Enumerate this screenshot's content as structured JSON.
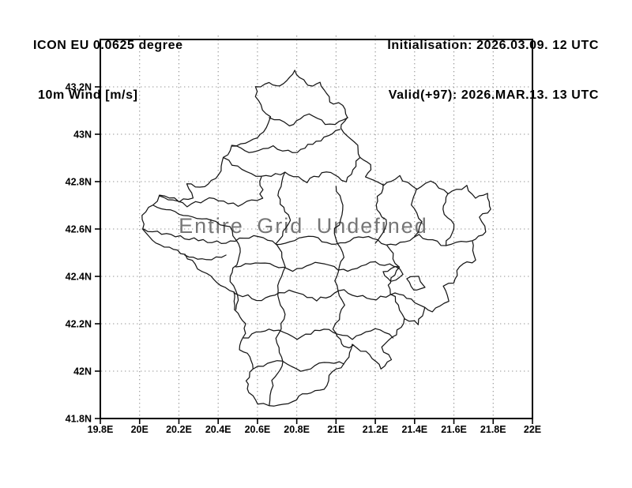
{
  "header": {
    "model": "ICON EU 0.0625 degree",
    "variable": "10m Wind [m/s]",
    "initialisation": "Initialisation: 2026.03.09. 12 UTC",
    "valid": "Valid(+97): 2026.MAR.13. 13 UTC"
  },
  "map": {
    "overlay_text": "Entire Grid Undefined",
    "x_range": [
      19.8,
      22.0
    ],
    "y_range": [
      41.8,
      43.4
    ],
    "x_tick_lons": [
      19.8,
      20.0,
      20.2,
      20.4,
      20.6,
      20.8,
      21.0,
      21.2,
      21.4,
      21.6,
      21.8,
      22.0
    ],
    "x_tick_labels": [
      "19.8E",
      "20E",
      "20.2E",
      "20.4E",
      "20.6E",
      "20.8E",
      "21E",
      "21.2E",
      "21.4E",
      "21.6E",
      "21.8E",
      "22E"
    ],
    "y_tick_lats": [
      43.2,
      43.0,
      42.8,
      42.6,
      42.4,
      42.2,
      42.0,
      41.8
    ],
    "y_tick_labels": [
      "43.2N",
      "43N",
      "42.8N",
      "42.6N",
      "42.4N",
      "42.2N",
      "42N",
      "41.8N"
    ],
    "colors": {
      "boundary": "#161616",
      "grid": "#949494",
      "frame": "#000000",
      "overlay_text": "#767676",
      "label": "#000000"
    },
    "boundaries": {
      "outer": [
        [
          20.79,
          43.27
        ],
        [
          20.86,
          43.2
        ],
        [
          20.92,
          43.22
        ],
        [
          20.97,
          43.14
        ],
        [
          21.03,
          43.12
        ],
        [
          21.06,
          43.07
        ],
        [
          21.02,
          43.02
        ],
        [
          21.1,
          42.97
        ],
        [
          21.12,
          42.9
        ],
        [
          21.18,
          42.87
        ],
        [
          21.15,
          42.82
        ],
        [
          21.24,
          42.79
        ],
        [
          21.32,
          42.82
        ],
        [
          21.41,
          42.77
        ],
        [
          21.48,
          42.8
        ],
        [
          21.57,
          42.75
        ],
        [
          21.66,
          42.78
        ],
        [
          21.71,
          42.73
        ],
        [
          21.77,
          42.75
        ],
        [
          21.79,
          42.68
        ],
        [
          21.73,
          42.65
        ],
        [
          21.76,
          42.59
        ],
        [
          21.69,
          42.55
        ],
        [
          21.71,
          42.47
        ],
        [
          21.63,
          42.44
        ],
        [
          21.6,
          42.37
        ],
        [
          21.55,
          42.36
        ],
        [
          21.57,
          42.3
        ],
        [
          21.49,
          42.25
        ],
        [
          21.45,
          42.27
        ],
        [
          21.42,
          42.2
        ],
        [
          21.35,
          42.22
        ],
        [
          21.29,
          42.14
        ],
        [
          21.23,
          42.1
        ],
        [
          21.28,
          42.05
        ],
        [
          21.23,
          42.01
        ],
        [
          21.15,
          42.08
        ],
        [
          21.09,
          42.11
        ],
        [
          21.04,
          42.03
        ],
        [
          20.97,
          41.98
        ],
        [
          20.94,
          41.92
        ],
        [
          20.85,
          41.91
        ],
        [
          20.78,
          41.87
        ],
        [
          20.66,
          41.855
        ],
        [
          20.6,
          41.86
        ],
        [
          20.56,
          41.91
        ],
        [
          20.54,
          41.96
        ],
        [
          20.58,
          42.01
        ],
        [
          20.56,
          42.06
        ],
        [
          20.51,
          42.09
        ],
        [
          20.53,
          42.14
        ],
        [
          20.54,
          42.2
        ],
        [
          20.49,
          42.26
        ],
        [
          20.48,
          42.33
        ],
        [
          20.41,
          42.36
        ],
        [
          20.34,
          42.41
        ],
        [
          20.28,
          42.45
        ],
        [
          20.23,
          42.49
        ],
        [
          20.15,
          42.52
        ],
        [
          20.06,
          42.55
        ],
        [
          20.02,
          42.6
        ],
        [
          20.01,
          42.66
        ],
        [
          20.07,
          42.7
        ],
        [
          20.1,
          42.74
        ],
        [
          20.2,
          42.72
        ],
        [
          20.27,
          42.73
        ],
        [
          20.24,
          42.79
        ],
        [
          20.33,
          42.78
        ],
        [
          20.4,
          42.83
        ],
        [
          20.43,
          42.9
        ],
        [
          20.47,
          42.95
        ],
        [
          20.56,
          42.97
        ],
        [
          20.63,
          43.01
        ],
        [
          20.66,
          43.07
        ],
        [
          20.6,
          43.14
        ],
        [
          20.59,
          43.2
        ],
        [
          20.66,
          43.22
        ],
        [
          20.72,
          43.2
        ],
        [
          20.79,
          43.27
        ]
      ],
      "internal": [
        [
          [
            20.47,
            42.95
          ],
          [
            20.58,
            42.92
          ],
          [
            20.68,
            42.95
          ],
          [
            20.78,
            42.92
          ],
          [
            20.88,
            42.96
          ],
          [
            21.02,
            43.02
          ]
        ],
        [
          [
            20.43,
            42.9
          ],
          [
            20.52,
            42.85
          ],
          [
            20.62,
            42.82
          ],
          [
            20.74,
            42.84
          ],
          [
            20.85,
            42.8
          ],
          [
            20.95,
            42.84
          ],
          [
            21.05,
            42.8
          ],
          [
            21.12,
            42.9
          ]
        ],
        [
          [
            20.1,
            42.74
          ],
          [
            20.24,
            42.7
          ],
          [
            20.38,
            42.73
          ],
          [
            20.5,
            42.7
          ],
          [
            20.62,
            42.73
          ],
          [
            20.62,
            42.82
          ]
        ],
        [
          [
            20.07,
            42.7
          ],
          [
            20.2,
            42.665
          ],
          [
            20.34,
            42.64
          ],
          [
            20.46,
            42.61
          ]
        ],
        [
          [
            20.02,
            42.6
          ],
          [
            20.16,
            42.575
          ],
          [
            20.3,
            42.555
          ],
          [
            20.44,
            42.54
          ]
        ],
        [
          [
            20.44,
            42.54
          ],
          [
            20.58,
            42.57
          ],
          [
            20.72,
            42.53
          ],
          [
            20.86,
            42.57
          ],
          [
            21.0,
            42.53
          ],
          [
            21.14,
            42.57
          ],
          [
            21.28,
            42.53
          ],
          [
            21.42,
            42.57
          ],
          [
            21.56,
            42.53
          ],
          [
            21.69,
            42.55
          ]
        ],
        [
          [
            20.46,
            42.61
          ],
          [
            20.52,
            42.5
          ],
          [
            20.46,
            42.4
          ],
          [
            20.5,
            42.3
          ],
          [
            20.49,
            42.26
          ]
        ],
        [
          [
            20.74,
            42.84
          ],
          [
            20.7,
            42.74
          ],
          [
            20.76,
            42.64
          ],
          [
            20.7,
            42.54
          ],
          [
            20.74,
            42.44
          ],
          [
            20.7,
            42.34
          ],
          [
            20.74,
            42.24
          ],
          [
            20.7,
            42.14
          ],
          [
            20.73,
            42.04
          ],
          [
            20.68,
            41.96
          ],
          [
            20.66,
            41.855
          ]
        ],
        [
          [
            21.0,
            42.78
          ],
          [
            21.04,
            42.68
          ],
          [
            20.99,
            42.58
          ],
          [
            21.04,
            42.48
          ],
          [
            20.99,
            42.38
          ],
          [
            21.04,
            42.28
          ],
          [
            20.99,
            42.18
          ],
          [
            21.04,
            42.1
          ],
          [
            21.09,
            42.11
          ]
        ],
        [
          [
            21.24,
            42.79
          ],
          [
            21.2,
            42.7
          ],
          [
            21.26,
            42.62
          ],
          [
            21.2,
            42.54
          ]
        ],
        [
          [
            21.26,
            42.53
          ],
          [
            21.32,
            42.44
          ],
          [
            21.26,
            42.36
          ],
          [
            21.32,
            42.28
          ],
          [
            21.35,
            42.22
          ]
        ],
        [
          [
            20.49,
            42.44
          ],
          [
            20.64,
            42.46
          ],
          [
            20.78,
            42.42
          ],
          [
            20.92,
            42.46
          ],
          [
            21.06,
            42.42
          ],
          [
            21.2,
            42.46
          ],
          [
            21.32,
            42.44
          ]
        ],
        [
          [
            20.48,
            42.33
          ],
          [
            20.62,
            42.3
          ],
          [
            20.76,
            42.34
          ],
          [
            20.9,
            42.3
          ],
          [
            21.04,
            42.34
          ],
          [
            21.18,
            42.3
          ],
          [
            21.3,
            42.33
          ]
        ],
        [
          [
            20.53,
            42.14
          ],
          [
            20.66,
            42.18
          ],
          [
            20.8,
            42.14
          ],
          [
            20.94,
            42.18
          ],
          [
            21.08,
            42.14
          ],
          [
            21.2,
            42.18
          ],
          [
            21.29,
            42.14
          ]
        ],
        [
          [
            20.58,
            42.01
          ],
          [
            20.7,
            42.045
          ],
          [
            20.82,
            42.0
          ],
          [
            20.94,
            42.04
          ],
          [
            21.04,
            42.03
          ]
        ],
        [
          [
            21.41,
            42.77
          ],
          [
            21.38,
            42.7
          ],
          [
            21.44,
            42.63
          ],
          [
            21.4,
            42.57
          ]
        ],
        [
          [
            21.57,
            42.75
          ],
          [
            21.54,
            42.68
          ],
          [
            21.6,
            42.62
          ],
          [
            21.56,
            42.53
          ]
        ],
        [
          [
            21.24,
            42.42
          ],
          [
            21.3,
            42.44
          ],
          [
            21.34,
            42.41
          ],
          [
            21.28,
            42.38
          ],
          [
            21.24,
            42.42
          ]
        ],
        [
          [
            21.36,
            42.39
          ],
          [
            21.42,
            42.4
          ],
          [
            21.45,
            42.36
          ],
          [
            21.39,
            42.34
          ],
          [
            21.36,
            42.39
          ]
        ],
        [
          [
            21.3,
            42.33
          ],
          [
            21.38,
            42.3
          ],
          [
            21.45,
            42.27
          ]
        ],
        [
          [
            20.66,
            43.07
          ],
          [
            20.76,
            43.04
          ],
          [
            20.86,
            43.08
          ],
          [
            20.97,
            43.04
          ],
          [
            21.06,
            43.07
          ]
        ],
        [
          [
            20.23,
            42.49
          ],
          [
            20.34,
            42.47
          ],
          [
            20.44,
            42.49
          ]
        ]
      ]
    }
  }
}
